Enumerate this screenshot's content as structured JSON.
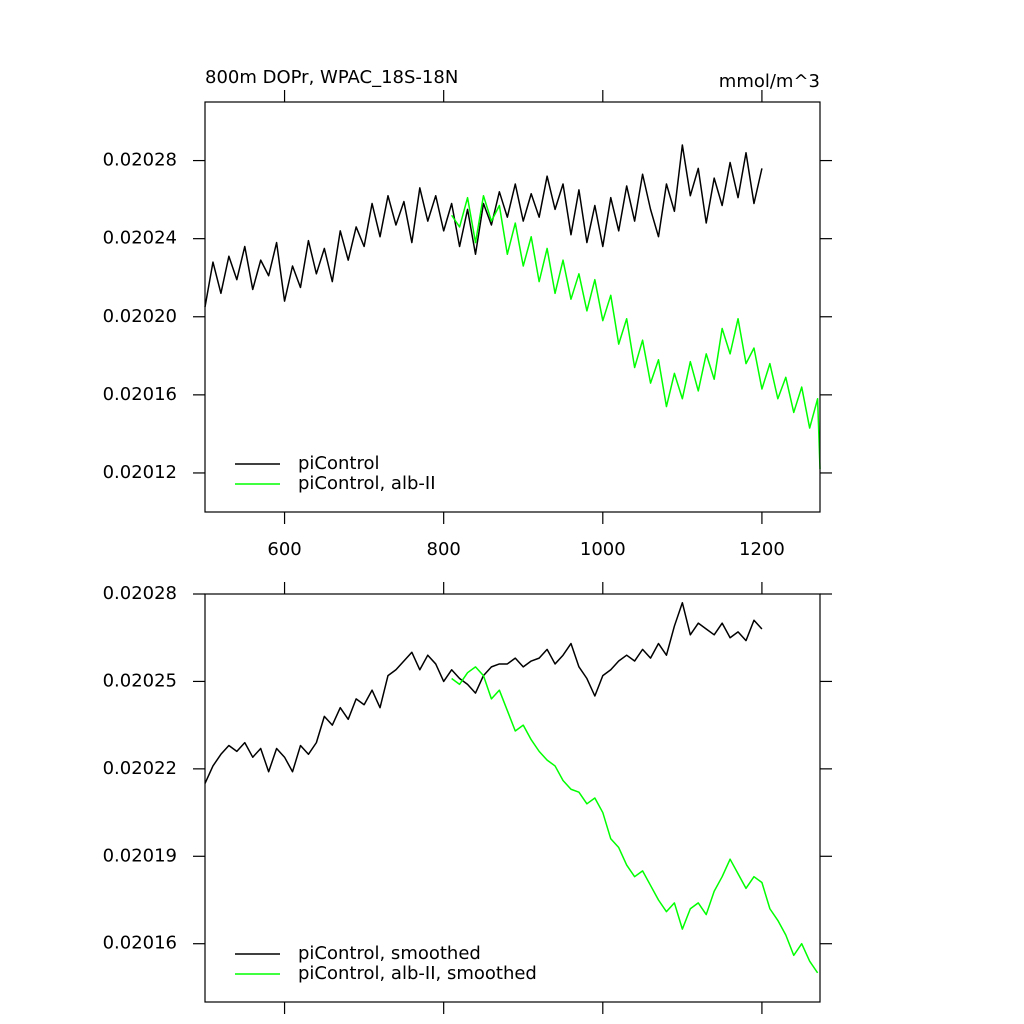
{
  "chart_data": [
    {
      "type": "line",
      "title_left": "800m DOPr, WPAC_18S-18N",
      "title_right": "mmol/m^3",
      "xlim": [
        500,
        1273
      ],
      "xticks": [
        600,
        800,
        1000,
        1200
      ],
      "x_tick_labels": true,
      "ylim": [
        0.0201,
        0.02031
      ],
      "yticks": [
        0.02012,
        0.02016,
        {
          "value": 0.0202,
          "label": "0.02020"
        },
        0.02024,
        0.02028
      ],
      "legend": "lower left",
      "series": [
        {
          "name": "piControl",
          "color": "#000000",
          "x": [
            500,
            510,
            520,
            530,
            540,
            550,
            560,
            570,
            580,
            590,
            600,
            610,
            620,
            630,
            640,
            650,
            660,
            670,
            680,
            690,
            700,
            710,
            720,
            730,
            740,
            750,
            760,
            770,
            780,
            790,
            800,
            810,
            820,
            830,
            840,
            850,
            860,
            870,
            880,
            890,
            900,
            910,
            920,
            930,
            940,
            950,
            960,
            970,
            980,
            990,
            1000,
            1010,
            1020,
            1030,
            1040,
            1050,
            1060,
            1070,
            1080,
            1090,
            1100,
            1110,
            1120,
            1130,
            1140,
            1150,
            1160,
            1170,
            1180,
            1190,
            1200
          ],
          "values": [
            0.020205,
            0.020228,
            0.020212,
            0.020231,
            0.020219,
            0.020236,
            0.020214,
            0.020229,
            0.020221,
            0.020238,
            0.020208,
            0.020226,
            0.020215,
            0.020239,
            0.020222,
            0.020235,
            0.020218,
            0.020244,
            0.020229,
            0.020246,
            0.020236,
            0.020258,
            0.020241,
            0.020262,
            0.020247,
            0.020259,
            0.020238,
            0.020266,
            0.020249,
            0.020262,
            0.020244,
            0.020258,
            0.020236,
            0.020255,
            0.020232,
            0.020258,
            0.020247,
            0.020264,
            0.020251,
            0.020268,
            0.020249,
            0.020263,
            0.020251,
            0.020272,
            0.020255,
            0.020268,
            0.020242,
            0.020265,
            0.020238,
            0.020257,
            0.020236,
            0.020261,
            0.020244,
            0.020267,
            0.020249,
            0.020273,
            0.020255,
            0.020241,
            0.020268,
            0.020254,
            0.020288,
            0.020262,
            0.020276,
            0.020248,
            0.020271,
            0.020257,
            0.020279,
            0.020261,
            0.020284,
            0.020258,
            0.020276
          ]
        },
        {
          "name": "piControl, alb-II",
          "color": "#00ff00",
          "x": [
            810,
            820,
            830,
            840,
            850,
            860,
            870,
            880,
            890,
            900,
            910,
            920,
            930,
            940,
            950,
            960,
            970,
            980,
            990,
            1000,
            1010,
            1020,
            1030,
            1040,
            1050,
            1060,
            1070,
            1080,
            1090,
            1100,
            1110,
            1120,
            1130,
            1140,
            1150,
            1160,
            1170,
            1180,
            1190,
            1200,
            1210,
            1220,
            1230,
            1240,
            1250,
            1260,
            1270,
            1273
          ],
          "values": [
            0.020252,
            0.020246,
            0.020261,
            0.020238,
            0.020262,
            0.020249,
            0.020257,
            0.020232,
            0.020248,
            0.020226,
            0.020241,
            0.020218,
            0.020235,
            0.020212,
            0.020229,
            0.020209,
            0.020222,
            0.020203,
            0.020219,
            0.020198,
            0.020211,
            0.020186,
            0.020199,
            0.020174,
            0.020188,
            0.020166,
            0.020178,
            0.020154,
            0.020171,
            0.020158,
            0.020177,
            0.020162,
            0.020181,
            0.020168,
            0.020194,
            0.020181,
            0.020199,
            0.020176,
            0.020184,
            0.020163,
            0.020176,
            0.020158,
            0.020169,
            0.020151,
            0.020164,
            0.020143,
            0.020158,
            0.020122
          ]
        }
      ]
    },
    {
      "type": "line",
      "xlim": [
        500,
        1273
      ],
      "xticks": [
        600,
        800,
        1000,
        1200
      ],
      "x_tick_labels": false,
      "ylim": [
        0.02014,
        0.02028
      ],
      "yticks": [
        0.02016,
        0.02019,
        0.02022,
        0.02025,
        0.02028
      ],
      "legend": "lower left",
      "series": [
        {
          "name": "piControl, smoothed",
          "color": "#000000",
          "x": [
            500,
            510,
            520,
            530,
            540,
            550,
            560,
            570,
            580,
            590,
            600,
            610,
            620,
            630,
            640,
            650,
            660,
            670,
            680,
            690,
            700,
            710,
            720,
            730,
            740,
            750,
            760,
            770,
            780,
            790,
            800,
            810,
            820,
            830,
            840,
            850,
            860,
            870,
            880,
            890,
            900,
            910,
            920,
            930,
            940,
            950,
            960,
            970,
            980,
            990,
            1000,
            1010,
            1020,
            1030,
            1040,
            1050,
            1060,
            1070,
            1080,
            1090,
            1100,
            1110,
            1120,
            1130,
            1140,
            1150,
            1160,
            1170,
            1180,
            1190,
            1200
          ],
          "values": [
            0.020215,
            0.020221,
            0.020225,
            0.020228,
            0.020226,
            0.020229,
            0.020224,
            0.020227,
            0.020219,
            0.020227,
            0.020224,
            0.020219,
            0.020228,
            0.020225,
            0.020229,
            0.020238,
            0.020235,
            0.020241,
            0.020237,
            0.020244,
            0.020242,
            0.020247,
            0.020241,
            0.020252,
            0.020254,
            0.020257,
            0.02026,
            0.020254,
            0.020259,
            0.020256,
            0.02025,
            0.020254,
            0.020251,
            0.020249,
            0.020246,
            0.020252,
            0.020255,
            0.020256,
            0.020256,
            0.020258,
            0.020255,
            0.020257,
            0.020258,
            0.020261,
            0.020256,
            0.020259,
            0.020263,
            0.020255,
            0.020251,
            0.020245,
            0.020252,
            0.020254,
            0.020257,
            0.020259,
            0.020257,
            0.020261,
            0.020258,
            0.020263,
            0.020259,
            0.020269,
            0.020277,
            0.020266,
            0.02027,
            0.020268,
            0.020266,
            0.02027,
            0.020265,
            0.020267,
            0.020264,
            0.020271,
            0.020268
          ]
        },
        {
          "name": "piControl, alb-II, smoothed",
          "color": "#00ff00",
          "x": [
            810,
            820,
            830,
            840,
            850,
            860,
            870,
            880,
            890,
            900,
            910,
            920,
            930,
            940,
            950,
            960,
            970,
            980,
            990,
            1000,
            1010,
            1020,
            1030,
            1040,
            1050,
            1060,
            1070,
            1080,
            1090,
            1100,
            1110,
            1120,
            1130,
            1140,
            1150,
            1160,
            1170,
            1180,
            1190,
            1200,
            1210,
            1220,
            1230,
            1240,
            1250,
            1260,
            1270
          ],
          "values": [
            0.020251,
            0.020249,
            0.020253,
            0.020255,
            0.020252,
            0.020244,
            0.020247,
            0.02024,
            0.020233,
            0.020235,
            0.02023,
            0.020226,
            0.020223,
            0.020221,
            0.020216,
            0.020213,
            0.020212,
            0.020208,
            0.02021,
            0.020205,
            0.020196,
            0.020193,
            0.020187,
            0.020183,
            0.020185,
            0.02018,
            0.020175,
            0.020171,
            0.020174,
            0.020165,
            0.020172,
            0.020174,
            0.02017,
            0.020178,
            0.020183,
            0.020189,
            0.020184,
            0.020179,
            0.020183,
            0.020181,
            0.020172,
            0.020168,
            0.020163,
            0.020156,
            0.02016,
            0.020154,
            0.02015
          ]
        }
      ]
    }
  ]
}
